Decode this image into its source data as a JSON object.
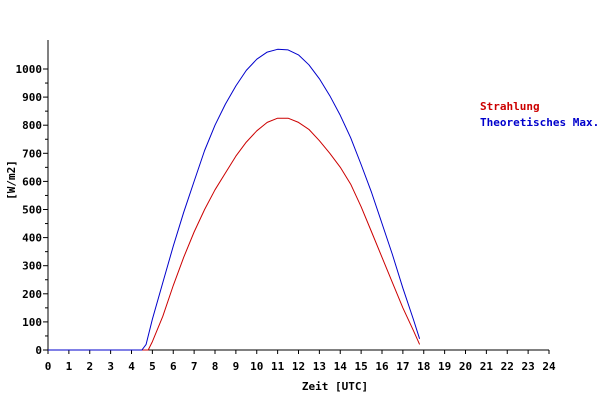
{
  "chart_data": {
    "type": "line",
    "title": "",
    "xlabel": "Zeit [UTC]",
    "ylabel": "[W/m2]",
    "xlim": [
      0,
      24
    ],
    "ylim": [
      0,
      1100
    ],
    "x_ticks": [
      0,
      1,
      2,
      3,
      4,
      5,
      6,
      7,
      8,
      9,
      10,
      11,
      12,
      13,
      14,
      15,
      16,
      17,
      18,
      19,
      20,
      21,
      22,
      23,
      24
    ],
    "y_ticks": [
      0,
      100,
      200,
      300,
      400,
      500,
      600,
      700,
      800,
      900,
      1000
    ],
    "grid": false,
    "legend_position": "right",
    "series": [
      {
        "name": "Strahlung",
        "color": "#cc0000",
        "points": [
          [
            0,
            0
          ],
          [
            4.5,
            0
          ],
          [
            4.8,
            0
          ],
          [
            5.0,
            30
          ],
          [
            5.5,
            120
          ],
          [
            6.0,
            230
          ],
          [
            6.5,
            330
          ],
          [
            7.0,
            420
          ],
          [
            7.5,
            500
          ],
          [
            8.0,
            570
          ],
          [
            8.5,
            630
          ],
          [
            9.0,
            690
          ],
          [
            9.5,
            740
          ],
          [
            10.0,
            780
          ],
          [
            10.5,
            810
          ],
          [
            11.0,
            825
          ],
          [
            11.5,
            825
          ],
          [
            12.0,
            810
          ],
          [
            12.5,
            785
          ],
          [
            13.0,
            745
          ],
          [
            13.5,
            700
          ],
          [
            14.0,
            650
          ],
          [
            14.5,
            590
          ],
          [
            15.0,
            510
          ],
          [
            15.5,
            420
          ],
          [
            16.0,
            330
          ],
          [
            16.5,
            240
          ],
          [
            17.0,
            150
          ],
          [
            17.5,
            70
          ],
          [
            17.8,
            20
          ]
        ]
      },
      {
        "name": "Theoretisches Max.",
        "color": "#0000cc",
        "points": [
          [
            0,
            0
          ],
          [
            4.5,
            0
          ],
          [
            4.7,
            20
          ],
          [
            5.0,
            110
          ],
          [
            5.5,
            240
          ],
          [
            6.0,
            370
          ],
          [
            6.5,
            490
          ],
          [
            7.0,
            600
          ],
          [
            7.5,
            710
          ],
          [
            8.0,
            800
          ],
          [
            8.5,
            875
          ],
          [
            9.0,
            940
          ],
          [
            9.5,
            995
          ],
          [
            10.0,
            1035
          ],
          [
            10.5,
            1060
          ],
          [
            11.0,
            1070
          ],
          [
            11.5,
            1068
          ],
          [
            12.0,
            1050
          ],
          [
            12.5,
            1015
          ],
          [
            13.0,
            965
          ],
          [
            13.5,
            905
          ],
          [
            14.0,
            835
          ],
          [
            14.5,
            755
          ],
          [
            15.0,
            660
          ],
          [
            15.5,
            560
          ],
          [
            16.0,
            450
          ],
          [
            16.5,
            340
          ],
          [
            17.0,
            220
          ],
          [
            17.5,
            110
          ],
          [
            17.8,
            40
          ]
        ]
      }
    ]
  }
}
